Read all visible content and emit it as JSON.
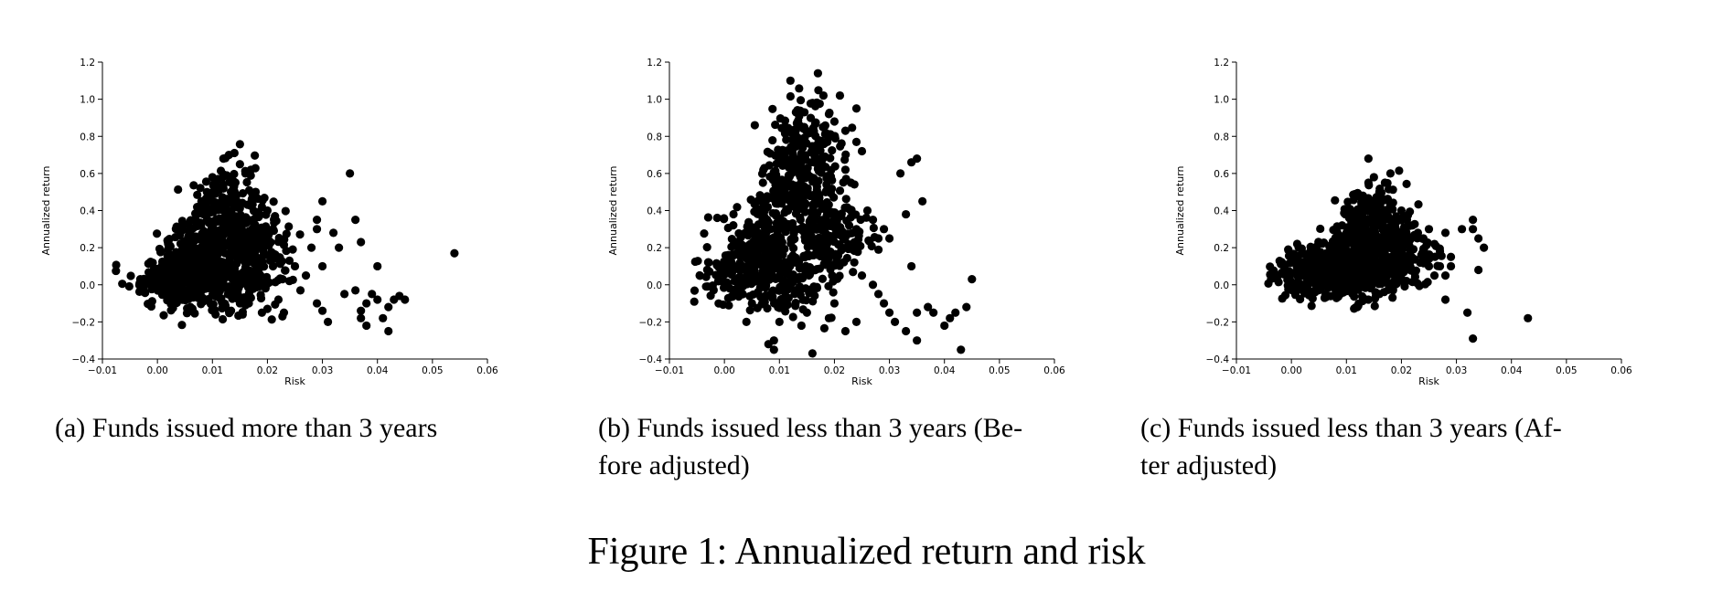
{
  "figure": {
    "caption": "Figure 1: Annualized return and risk"
  },
  "chart_data": [
    {
      "type": "scatter",
      "caption": "(a) Funds issued more than 3 years",
      "xlabel": "Risk",
      "ylabel": "Annualized return",
      "xlim": [
        -0.01,
        0.06
      ],
      "ylim": [
        -0.4,
        1.2
      ],
      "xticks": [
        "−0.01",
        "0.00",
        "0.01",
        "0.02",
        "0.03",
        "0.04",
        "0.05",
        "0.06"
      ],
      "yticks": [
        "−0.4",
        "−0.2",
        "0.0",
        "0.2",
        "0.4",
        "0.6",
        "0.8",
        "1.0",
        "1.2"
      ],
      "grid": false,
      "cluster": {
        "points": [
          [
            0.0,
            0.03
          ],
          [
            0.001,
            0.05
          ],
          [
            0.002,
            0.02
          ],
          [
            0.003,
            0.08
          ],
          [
            0.004,
            0.06
          ],
          [
            0.005,
            0.1
          ],
          [
            0.006,
            0.04
          ],
          [
            0.007,
            0.12
          ],
          [
            0.008,
            0.16
          ],
          [
            0.009,
            0.2
          ],
          [
            0.01,
            0.18
          ],
          [
            0.011,
            0.25
          ],
          [
            0.012,
            0.3
          ],
          [
            0.013,
            0.28
          ],
          [
            0.014,
            0.35
          ],
          [
            0.015,
            0.4
          ],
          [
            0.016,
            0.33
          ],
          [
            0.017,
            0.2
          ],
          [
            0.018,
            0.15
          ],
          [
            0.019,
            0.1
          ],
          [
            0.002,
            -0.02
          ],
          [
            0.004,
            0.0
          ],
          [
            0.006,
            0.02
          ],
          [
            0.008,
            -0.05
          ],
          [
            0.01,
            0.05
          ],
          [
            0.012,
            -0.03
          ],
          [
            0.014,
            0.06
          ],
          [
            0.016,
            0.1
          ],
          [
            0.018,
            0.28
          ],
          [
            0.02,
            0.05
          ],
          [
            0.011,
            0.42
          ],
          [
            0.013,
            0.48
          ],
          [
            0.015,
            0.52
          ],
          [
            0.009,
            0.35
          ],
          [
            0.007,
            0.22
          ],
          [
            0.005,
            0.15
          ],
          [
            0.003,
            0.1
          ],
          [
            0.012,
            0.0
          ],
          [
            0.016,
            -0.02
          ],
          [
            0.019,
            0.25
          ]
        ],
        "spread": [
          0.003,
          0.075
        ]
      },
      "points": [
        [
          0.0,
          0.02
        ],
        [
          0.0,
          0.06
        ],
        [
          0.001,
          0.0
        ],
        [
          0.003,
          0.1
        ],
        [
          0.005,
          0.15
        ],
        [
          0.006,
          -0.12
        ],
        [
          0.008,
          0.45
        ],
        [
          0.009,
          0.5
        ],
        [
          0.01,
          0.58
        ],
        [
          0.011,
          0.57
        ],
        [
          0.012,
          0.68
        ],
        [
          0.013,
          0.7
        ],
        [
          0.014,
          0.71
        ],
        [
          0.015,
          0.65
        ],
        [
          0.016,
          0.6
        ],
        [
          0.017,
          0.62
        ],
        [
          0.018,
          0.47
        ],
        [
          0.019,
          0.42
        ],
        [
          0.02,
          0.4
        ],
        [
          0.013,
          -0.14
        ],
        [
          0.015,
          -0.1
        ],
        [
          0.017,
          -0.07
        ],
        [
          0.019,
          -0.15
        ],
        [
          0.02,
          -0.13
        ],
        [
          0.021,
          0.3
        ],
        [
          0.022,
          -0.08
        ],
        [
          0.023,
          -0.15
        ],
        [
          0.024,
          0.02
        ],
        [
          0.025,
          0.1
        ],
        [
          0.024,
          0.13
        ],
        [
          0.026,
          -0.03
        ],
        [
          0.027,
          0.05
        ],
        [
          0.028,
          0.2
        ],
        [
          0.029,
          0.35
        ],
        [
          0.029,
          0.3
        ],
        [
          0.03,
          0.45
        ],
        [
          0.03,
          0.1
        ],
        [
          0.029,
          -0.1
        ],
        [
          0.03,
          -0.14
        ],
        [
          0.031,
          -0.2
        ],
        [
          0.032,
          0.28
        ],
        [
          0.033,
          0.2
        ],
        [
          0.034,
          -0.05
        ],
        [
          0.035,
          0.6
        ],
        [
          0.036,
          0.35
        ],
        [
          0.037,
          0.23
        ],
        [
          0.036,
          -0.03
        ],
        [
          0.037,
          -0.18
        ],
        [
          0.038,
          -0.22
        ],
        [
          0.037,
          -0.14
        ],
        [
          0.038,
          -0.1
        ],
        [
          0.039,
          -0.05
        ],
        [
          0.04,
          0.1
        ],
        [
          0.04,
          -0.08
        ],
        [
          0.041,
          -0.18
        ],
        [
          0.042,
          -0.25
        ],
        [
          0.042,
          -0.12
        ],
        [
          0.043,
          -0.08
        ],
        [
          0.044,
          -0.06
        ],
        [
          0.045,
          -0.08
        ],
        [
          0.054,
          0.17
        ]
      ]
    },
    {
      "type": "scatter",
      "caption": "(b) Funds issued less than 3 years (Be-\nfore adjusted)",
      "xlabel": "Risk",
      "ylabel": "Annualized return",
      "xlim": [
        -0.01,
        0.06
      ],
      "ylim": [
        -0.4,
        1.2
      ],
      "xticks": [
        "−0.01",
        "0.00",
        "0.01",
        "0.02",
        "0.03",
        "0.04",
        "0.05",
        "0.06"
      ],
      "yticks": [
        "−0.4",
        "−0.2",
        "0.0",
        "0.2",
        "0.4",
        "0.6",
        "0.8",
        "1.0",
        "1.2"
      ],
      "grid": false,
      "cluster": {
        "points": [
          [
            0.0,
            0.03
          ],
          [
            0.001,
            0.06
          ],
          [
            0.002,
            0.1
          ],
          [
            0.003,
            0.14
          ],
          [
            0.004,
            0.18
          ],
          [
            0.005,
            0.22
          ],
          [
            0.006,
            0.26
          ],
          [
            0.007,
            0.3
          ],
          [
            0.008,
            0.35
          ],
          [
            0.009,
            0.4
          ],
          [
            0.01,
            0.45
          ],
          [
            0.011,
            0.5
          ],
          [
            0.012,
            0.55
          ],
          [
            0.013,
            0.6
          ],
          [
            0.014,
            0.68
          ],
          [
            0.015,
            0.72
          ],
          [
            0.016,
            0.8
          ],
          [
            0.017,
            0.65
          ],
          [
            0.018,
            0.5
          ],
          [
            0.019,
            0.4
          ],
          [
            0.02,
            0.3
          ],
          [
            0.021,
            0.25
          ],
          [
            0.004,
            0.0
          ],
          [
            0.006,
            0.05
          ],
          [
            0.008,
            0.1
          ],
          [
            0.01,
            0.15
          ],
          [
            0.012,
            0.2
          ],
          [
            0.014,
            0.3
          ],
          [
            0.016,
            0.35
          ],
          [
            0.018,
            0.2
          ],
          [
            0.02,
            0.15
          ],
          [
            0.022,
            0.2
          ],
          [
            0.012,
            0.05
          ],
          [
            0.014,
            0.0
          ],
          [
            0.016,
            0.1
          ],
          [
            0.01,
            -0.05
          ],
          [
            0.008,
            0.0
          ],
          [
            0.015,
            0.9
          ],
          [
            0.013,
            0.82
          ],
          [
            0.011,
            0.62
          ]
        ],
        "spread": [
          0.003,
          0.08
        ]
      },
      "points": [
        [
          0.0,
          0.0
        ],
        [
          0.001,
          -0.02
        ],
        [
          0.004,
          -0.2
        ],
        [
          0.005,
          -0.1
        ],
        [
          0.006,
          0.45
        ],
        [
          0.007,
          0.55
        ],
        [
          0.008,
          -0.32
        ],
        [
          0.009,
          -0.35
        ],
        [
          0.009,
          -0.3
        ],
        [
          0.01,
          -0.2
        ],
        [
          0.01,
          0.7
        ],
        [
          0.011,
          0.85
        ],
        [
          0.012,
          1.1
        ],
        [
          0.013,
          0.93
        ],
        [
          0.014,
          -0.22
        ],
        [
          0.015,
          -0.15
        ],
        [
          0.016,
          -0.37
        ],
        [
          0.016,
          0.98
        ],
        [
          0.017,
          1.14
        ],
        [
          0.018,
          1.02
        ],
        [
          0.019,
          0.92
        ],
        [
          0.02,
          0.88
        ],
        [
          0.021,
          1.02
        ],
        [
          0.022,
          0.83
        ],
        [
          0.022,
          0.62
        ],
        [
          0.023,
          0.55
        ],
        [
          0.024,
          0.95
        ],
        [
          0.024,
          0.77
        ],
        [
          0.025,
          0.72
        ],
        [
          0.023,
          0.4
        ],
        [
          0.024,
          0.3
        ],
        [
          0.024,
          -0.2
        ],
        [
          0.022,
          -0.25
        ],
        [
          0.02,
          -0.1
        ],
        [
          0.019,
          -0.18
        ],
        [
          0.025,
          0.05
        ],
        [
          0.026,
          0.4
        ],
        [
          0.027,
          0.35
        ],
        [
          0.028,
          0.25
        ],
        [
          0.029,
          0.3
        ],
        [
          0.03,
          0.25
        ],
        [
          0.027,
          0.0
        ],
        [
          0.028,
          -0.05
        ],
        [
          0.029,
          -0.1
        ],
        [
          0.03,
          -0.15
        ],
        [
          0.031,
          -0.2
        ],
        [
          0.032,
          0.6
        ],
        [
          0.033,
          0.38
        ],
        [
          0.033,
          -0.25
        ],
        [
          0.034,
          0.66
        ],
        [
          0.035,
          0.68
        ],
        [
          0.034,
          0.1
        ],
        [
          0.035,
          -0.3
        ],
        [
          0.035,
          -0.15
        ],
        [
          0.036,
          0.45
        ],
        [
          0.037,
          -0.12
        ],
        [
          0.038,
          -0.15
        ],
        [
          0.04,
          -0.22
        ],
        [
          0.041,
          -0.18
        ],
        [
          0.042,
          -0.15
        ],
        [
          0.043,
          -0.35
        ],
        [
          0.044,
          -0.12
        ],
        [
          0.045,
          0.03
        ]
      ]
    },
    {
      "type": "scatter",
      "caption": "(c) Funds issued less than 3 years (Af-\nter adjusted)",
      "xlabel": "Risk",
      "ylabel": "Annualized return",
      "xlim": [
        -0.01,
        0.06
      ],
      "ylim": [
        -0.4,
        1.2
      ],
      "xticks": [
        "−0.01",
        "0.00",
        "0.01",
        "0.02",
        "0.03",
        "0.04",
        "0.05",
        "0.06"
      ],
      "yticks": [
        "−0.4",
        "−0.2",
        "0.0",
        "0.2",
        "0.4",
        "0.6",
        "0.8",
        "1.0",
        "1.2"
      ],
      "grid": false,
      "cluster": {
        "points": [
          [
            0.0,
            0.05
          ],
          [
            0.001,
            0.07
          ],
          [
            0.002,
            0.04
          ],
          [
            0.003,
            0.08
          ],
          [
            0.004,
            0.05
          ],
          [
            0.005,
            0.1
          ],
          [
            0.006,
            0.06
          ],
          [
            0.007,
            0.12
          ],
          [
            0.008,
            0.08
          ],
          [
            0.009,
            0.14
          ],
          [
            0.01,
            0.16
          ],
          [
            0.011,
            0.2
          ],
          [
            0.012,
            0.22
          ],
          [
            0.013,
            0.28
          ],
          [
            0.014,
            0.3
          ],
          [
            0.015,
            0.26
          ],
          [
            0.016,
            0.22
          ],
          [
            0.017,
            0.18
          ],
          [
            0.018,
            0.25
          ],
          [
            0.019,
            0.2
          ],
          [
            0.02,
            0.15
          ],
          [
            0.021,
            0.18
          ],
          [
            0.022,
            0.12
          ],
          [
            0.01,
            0.02
          ],
          [
            0.012,
            -0.02
          ],
          [
            0.014,
            0.05
          ],
          [
            0.016,
            0.1
          ],
          [
            0.018,
            0.05
          ],
          [
            0.02,
            0.1
          ],
          [
            0.013,
            0.4
          ],
          [
            0.015,
            0.42
          ],
          [
            0.014,
            0.45
          ],
          [
            0.011,
            0.3
          ],
          [
            0.008,
            0.02
          ],
          [
            0.006,
            0.02
          ],
          [
            0.004,
            0.1
          ],
          [
            0.017,
            0.35
          ],
          [
            0.019,
            0.3
          ],
          [
            0.012,
            0.1
          ],
          [
            0.016,
            0.05
          ]
        ],
        "spread": [
          0.0025,
          0.06
        ]
      },
      "points": [
        [
          0.0,
          0.16
        ],
        [
          0.0,
          0.0
        ],
        [
          0.001,
          0.12
        ],
        [
          0.002,
          0.0
        ],
        [
          0.005,
          0.06
        ],
        [
          0.007,
          0.15
        ],
        [
          0.008,
          0.2
        ],
        [
          0.009,
          0.25
        ],
        [
          0.01,
          0.28
        ],
        [
          0.011,
          0.3
        ],
        [
          0.012,
          0.35
        ],
        [
          0.013,
          0.48
        ],
        [
          0.014,
          0.55
        ],
        [
          0.014,
          0.68
        ],
        [
          0.015,
          0.58
        ],
        [
          0.016,
          0.5
        ],
        [
          0.017,
          0.55
        ],
        [
          0.018,
          0.6
        ],
        [
          0.012,
          -0.12
        ],
        [
          0.014,
          -0.08
        ],
        [
          0.016,
          -0.05
        ],
        [
          0.02,
          0.4
        ],
        [
          0.021,
          0.35
        ],
        [
          0.022,
          0.32
        ],
        [
          0.023,
          0.28
        ],
        [
          0.024,
          0.25
        ],
        [
          0.025,
          0.3
        ],
        [
          0.026,
          0.22
        ],
        [
          0.025,
          0.1
        ],
        [
          0.026,
          0.05
        ],
        [
          0.027,
          0.1
        ],
        [
          0.027,
          0.18
        ],
        [
          0.028,
          0.28
        ],
        [
          0.029,
          0.15
        ],
        [
          0.028,
          0.05
        ],
        [
          0.028,
          -0.08
        ],
        [
          0.029,
          0.1
        ],
        [
          0.031,
          0.3
        ],
        [
          0.032,
          -0.15
        ],
        [
          0.033,
          0.35
        ],
        [
          0.033,
          0.3
        ],
        [
          0.034,
          0.08
        ],
        [
          0.034,
          0.25
        ],
        [
          0.035,
          0.2
        ],
        [
          0.033,
          -0.29
        ],
        [
          0.043,
          -0.18
        ]
      ]
    }
  ]
}
